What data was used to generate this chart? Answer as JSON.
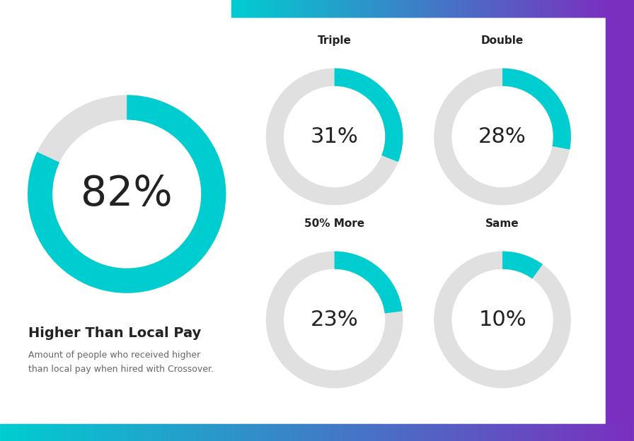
{
  "bg_color": "#ffffff",
  "teal_color": "#00CDD0",
  "gray_color": "#E0E0E0",
  "text_dark": "#222222",
  "text_medium": "#666666",
  "gradient_left": "#00CDD0",
  "gradient_right": "#7B2FBE",
  "purple_solid": "#7B2FBE",
  "main_pct": 82,
  "main_label": "82%",
  "main_title": "Higher Than Local Pay",
  "main_subtitle": "Amount of people who received higher\nthan local pay when hired with Crossover.",
  "small_charts": [
    {
      "label": "Triple",
      "pct": 31,
      "text": "31%"
    },
    {
      "label": "Double",
      "pct": 28,
      "text": "28%"
    },
    {
      "label": "50% More",
      "pct": 23,
      "text": "23%"
    },
    {
      "label": "Same",
      "pct": 10,
      "text": "10%"
    }
  ]
}
